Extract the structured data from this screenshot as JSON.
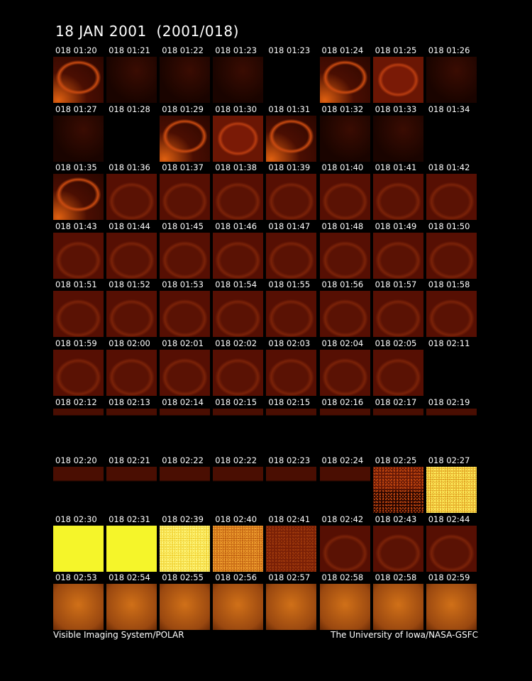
{
  "title": "18 JAN 2001  (2001/018)",
  "frames": [
    "018 01:20",
    "018 01:21",
    "018 01:22",
    "018 01:23",
    "018 01:23",
    "018 01:24",
    "018 01:25",
    "018 01:26",
    "018 01:27",
    "018 01:28",
    "018 01:29",
    "018 01:30",
    "018 01:31",
    "018 01:32",
    "018 01:33",
    "018 01:34",
    "018 01:35",
    "018 01:36",
    "018 01:37",
    "018 01:38",
    "018 01:39",
    "018 01:40",
    "018 01:41",
    "018 01:42",
    "018 01:43",
    "018 01:44",
    "018 01:45",
    "018 01:46",
    "018 01:47",
    "018 01:48",
    "018 01:49",
    "018 01:50",
    "018 01:51",
    "018 01:52",
    "018 01:53",
    "018 01:54",
    "018 01:55",
    "018 01:56",
    "018 01:57",
    "018 01:58",
    "018 01:59",
    "018 02:00",
    "018 02:01",
    "018 02:02",
    "018 02:03",
    "018 02:04",
    "018 02:05",
    "018 02:11",
    "018 02:12",
    "018 02:13",
    "018 02:14",
    "018 02:15",
    "018 02:15",
    "018 02:16",
    "018 02:17",
    "018 02:19",
    "018 02:20",
    "018 02:21",
    "018 02:22",
    "018 02:22",
    "018 02:23",
    "018 02:24",
    "018 02:25",
    "018 02:27",
    "018 02:30",
    "018 02:31",
    "018 02:39",
    "018 02:40",
    "018 02:41",
    "018 02:42",
    "018 02:43",
    "018 02:44",
    "018 02:53",
    "018 02:54",
    "018 02:55",
    "018 02:56",
    "018 02:57",
    "018 02:58",
    "018 02:58",
    "018 02:59"
  ],
  "footer": {
    "left": "Visible Imaging System/POLAR",
    "right": "The University of Iowa/NASA-GSFC"
  }
}
